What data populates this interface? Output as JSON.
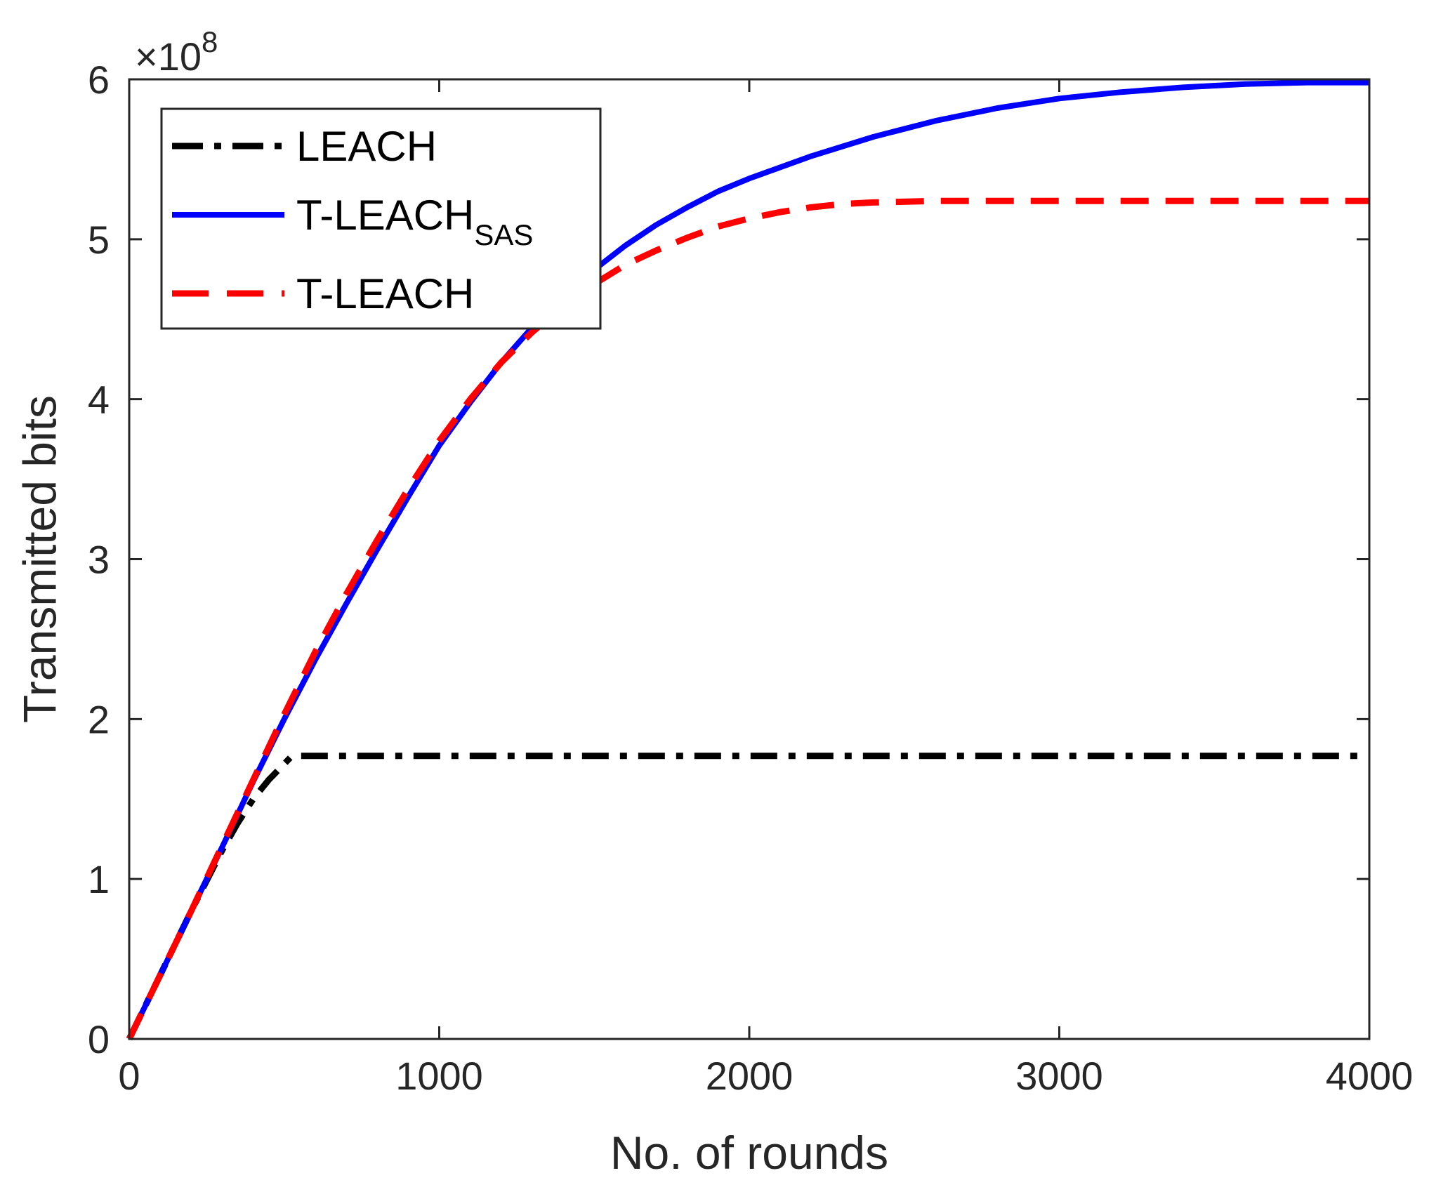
{
  "chart_data": {
    "type": "line",
    "title": "",
    "xlabel": "No. of rounds",
    "ylabel": "Transmitted bits",
    "xlim": [
      0,
      4000
    ],
    "ylim": [
      0,
      6
    ],
    "xticks": [
      0,
      1000,
      2000,
      3000,
      4000
    ],
    "yticks": [
      0,
      1,
      2,
      3,
      4,
      5,
      6
    ],
    "y_exponent": {
      "base": "10",
      "power": "8",
      "multiplier": "×"
    },
    "grid": false,
    "legend_position": "top-left",
    "series": [
      {
        "name": "LEACH",
        "name_main": "LEACH",
        "name_sub": "",
        "color": "#000000",
        "style": "dashdot",
        "x": [
          0,
          100,
          200,
          300,
          350,
          400,
          450,
          500,
          520,
          550,
          4000
        ],
        "y": [
          0,
          0.4,
          0.8,
          1.18,
          1.35,
          1.5,
          1.62,
          1.72,
          1.76,
          1.77,
          1.77
        ]
      },
      {
        "name": "T-LEACH_SAS",
        "name_main": "T-LEACH",
        "name_sub": "SAS",
        "color": "#0000ff",
        "style": "solid",
        "x": [
          0,
          100,
          200,
          300,
          400,
          500,
          600,
          700,
          800,
          900,
          1000,
          1100,
          1200,
          1300,
          1400,
          1500,
          1600,
          1700,
          1800,
          1900,
          2000,
          2200,
          2400,
          2600,
          2800,
          3000,
          3200,
          3400,
          3600,
          3800,
          4000
        ],
        "y": [
          0,
          0.4,
          0.8,
          1.2,
          1.61,
          2.0,
          2.37,
          2.72,
          3.06,
          3.39,
          3.71,
          3.98,
          4.23,
          4.45,
          4.64,
          4.81,
          4.96,
          5.09,
          5.2,
          5.3,
          5.38,
          5.52,
          5.64,
          5.74,
          5.82,
          5.88,
          5.92,
          5.95,
          5.97,
          5.98,
          5.98
        ]
      },
      {
        "name": "T-LEACH",
        "name_main": "T-LEACH",
        "name_sub": "",
        "color": "#ff0000",
        "style": "dashed",
        "x": [
          0,
          100,
          200,
          300,
          400,
          500,
          600,
          700,
          800,
          900,
          1000,
          1100,
          1200,
          1300,
          1400,
          1500,
          1600,
          1700,
          1800,
          1900,
          2000,
          2100,
          2200,
          2300,
          2400,
          2600,
          2800,
          3000,
          3500,
          4000
        ],
        "y": [
          0,
          0.4,
          0.8,
          1.21,
          1.62,
          2.03,
          2.42,
          2.78,
          3.12,
          3.44,
          3.74,
          4.0,
          4.23,
          4.42,
          4.58,
          4.72,
          4.84,
          4.93,
          5.01,
          5.08,
          5.13,
          5.17,
          5.2,
          5.22,
          5.23,
          5.24,
          5.24,
          5.24,
          5.24,
          5.24
        ]
      }
    ]
  }
}
